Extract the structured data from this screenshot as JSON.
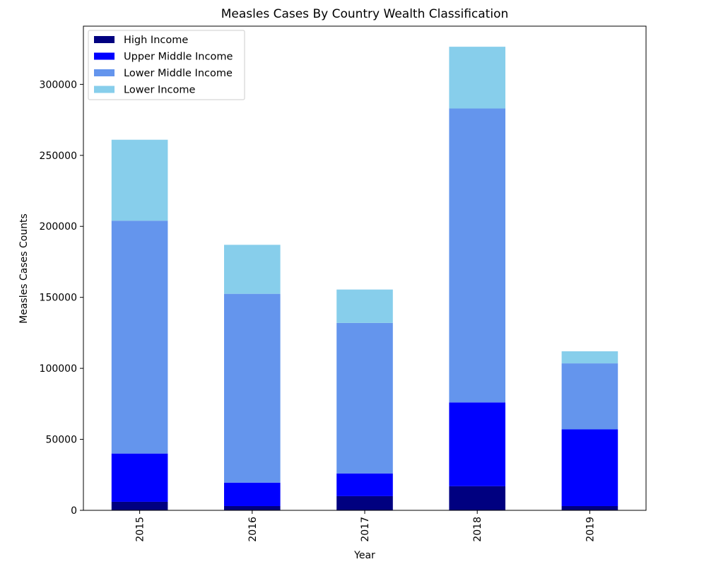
{
  "chart_data": {
    "type": "bar",
    "stacked": true,
    "title": "Measles Cases By Country Wealth Classification",
    "xlabel": "Year",
    "ylabel": "Measles Cases Counts",
    "categories": [
      "2015",
      "2016",
      "2017",
      "2018",
      "2019"
    ],
    "ylim": [
      0,
      341000
    ],
    "yticks": [
      0,
      50000,
      100000,
      150000,
      200000,
      250000,
      300000
    ],
    "ytick_labels": [
      "0",
      "50000",
      "100000",
      "150000",
      "200000",
      "250000",
      "300000"
    ],
    "grid": false,
    "legend_position": "top-left",
    "series": [
      {
        "name": "High Income",
        "color": "#000080",
        "values": [
          6000,
          3000,
          10000,
          17000,
          3000
        ]
      },
      {
        "name": "Upper Middle Income",
        "color": "#0000ff",
        "values": [
          34000,
          16500,
          16000,
          59000,
          54000
        ]
      },
      {
        "name": "Lower Middle Income",
        "color": "#6495ed",
        "values": [
          164000,
          133000,
          106000,
          207000,
          46500
        ]
      },
      {
        "name": "Lower Income",
        "color": "#87ceeb",
        "values": [
          57000,
          34500,
          23500,
          43500,
          8500
        ]
      }
    ]
  }
}
